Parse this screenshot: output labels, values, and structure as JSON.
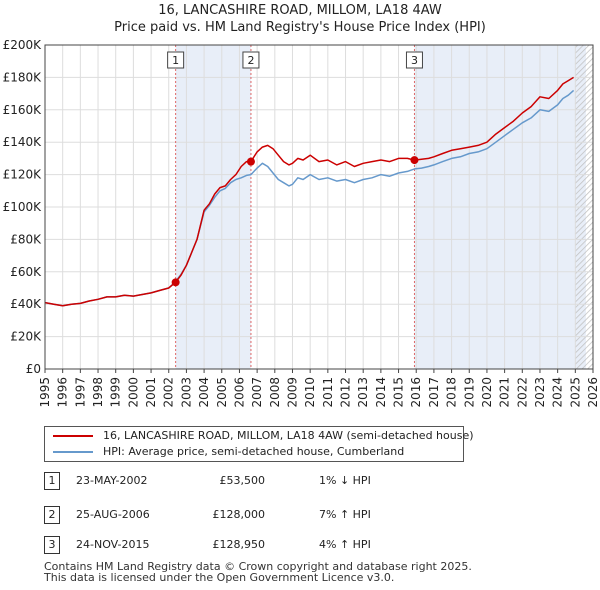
{
  "title_line1": "16, LANCASHIRE ROAD, MILLOM, LA18 4AW",
  "title_line2": "Price paid vs. HM Land Registry's House Price Index (HPI)",
  "colors": {
    "property": "#cc0000",
    "hpi": "#6699cc",
    "shade": "#e8eef8",
    "hatch": "#c0c0c0",
    "vline": "#dd6666"
  },
  "chart_data": {
    "type": "line",
    "xlim": [
      1995,
      2026
    ],
    "ylim": [
      0,
      200000
    ],
    "x_ticks": [
      "1995",
      "1996",
      "1997",
      "1998",
      "1999",
      "2000",
      "2001",
      "2002",
      "2003",
      "2004",
      "2005",
      "2006",
      "2007",
      "2008",
      "2009",
      "2010",
      "2011",
      "2012",
      "2013",
      "2014",
      "2015",
      "2016",
      "2017",
      "2018",
      "2019",
      "2020",
      "2021",
      "2022",
      "2023",
      "2024",
      "2025",
      "2026"
    ],
    "y_ticks": [
      "£0",
      "£20K",
      "£40K",
      "£60K",
      "£80K",
      "£100K",
      "£120K",
      "£140K",
      "£160K",
      "£180K",
      "£200K"
    ],
    "grid": true,
    "shaded_ranges": [
      [
        2002.39,
        2006.65
      ],
      [
        2015.9,
        2025.6
      ]
    ],
    "hatched_from": 2025.0,
    "series": [
      {
        "name": "property",
        "label": "16, LANCASHIRE ROAD, MILLOM, LA18 4AW (semi-detached house)",
        "x": [
          1995.0,
          1995.5,
          1996.0,
          1996.5,
          1997.0,
          1997.5,
          1998.0,
          1998.5,
          1999.0,
          1999.5,
          2000.0,
          2000.5,
          2001.0,
          2001.5,
          2002.0,
          2002.39,
          2002.7,
          2003.0,
          2003.3,
          2003.6,
          2004.0,
          2004.3,
          2004.6,
          2004.9,
          2005.2,
          2005.5,
          2005.8,
          2006.1,
          2006.4,
          2006.65,
          2007.0,
          2007.3,
          2007.6,
          2007.9,
          2008.2,
          2008.5,
          2008.8,
          2009.0,
          2009.3,
          2009.6,
          2010.0,
          2010.5,
          2011.0,
          2011.5,
          2012.0,
          2012.5,
          2013.0,
          2013.5,
          2014.0,
          2014.5,
          2015.0,
          2015.5,
          2015.9,
          2016.3,
          2016.7,
          2017.0,
          2017.5,
          2018.0,
          2018.5,
          2019.0,
          2019.5,
          2020.0,
          2020.5,
          2021.0,
          2021.5,
          2022.0,
          2022.5,
          2023.0,
          2023.5,
          2024.0,
          2024.3,
          2024.6,
          2024.9
        ],
        "y": [
          41000,
          40000,
          39000,
          40000,
          40500,
          42000,
          43000,
          44500,
          44500,
          45500,
          45000,
          46000,
          47000,
          48500,
          50000,
          53500,
          58000,
          64000,
          72000,
          80000,
          98000,
          102000,
          108000,
          112000,
          113000,
          117000,
          120000,
          125000,
          128000,
          128000,
          134000,
          137000,
          138000,
          136000,
          132000,
          128000,
          126000,
          127000,
          130000,
          129000,
          132000,
          128000,
          129000,
          126000,
          128000,
          125000,
          127000,
          128000,
          129000,
          128000,
          130000,
          130000,
          128950,
          129500,
          130000,
          131000,
          133000,
          135000,
          136000,
          137000,
          138000,
          140000,
          145000,
          149000,
          153000,
          158000,
          162000,
          168000,
          167000,
          172000,
          176000,
          178000,
          180000
        ]
      },
      {
        "name": "hpi",
        "label": "HPI: Average price, semi-detached house, Cumberland",
        "x": [
          1995.0,
          1995.5,
          1996.0,
          1996.5,
          1997.0,
          1997.5,
          1998.0,
          1998.5,
          1999.0,
          1999.5,
          2000.0,
          2000.5,
          2001.0,
          2001.5,
          2002.0,
          2002.39,
          2002.7,
          2003.0,
          2003.3,
          2003.6,
          2004.0,
          2004.3,
          2004.6,
          2004.9,
          2005.2,
          2005.5,
          2005.8,
          2006.1,
          2006.4,
          2006.65,
          2007.0,
          2007.3,
          2007.6,
          2007.9,
          2008.2,
          2008.5,
          2008.8,
          2009.0,
          2009.3,
          2009.6,
          2010.0,
          2010.5,
          2011.0,
          2011.5,
          2012.0,
          2012.5,
          2013.0,
          2013.5,
          2014.0,
          2014.5,
          2015.0,
          2015.5,
          2015.9,
          2016.3,
          2016.7,
          2017.0,
          2017.5,
          2018.0,
          2018.5,
          2019.0,
          2019.5,
          2020.0,
          2020.5,
          2021.0,
          2021.5,
          2022.0,
          2022.5,
          2023.0,
          2023.5,
          2024.0,
          2024.3,
          2024.6,
          2024.9
        ],
        "y": [
          41000,
          40000,
          39000,
          40000,
          40500,
          42000,
          43000,
          44500,
          44500,
          45500,
          45000,
          46000,
          47000,
          48500,
          50000,
          54000,
          58500,
          64000,
          72000,
          80000,
          97000,
          101000,
          106000,
          110000,
          111500,
          115000,
          117000,
          118000,
          119500,
          120000,
          124000,
          127000,
          125000,
          121000,
          117000,
          115000,
          113000,
          114000,
          118000,
          117000,
          120000,
          117000,
          118000,
          116000,
          117000,
          115000,
          117000,
          118000,
          120000,
          119000,
          121000,
          122000,
          123500,
          124000,
          125000,
          126000,
          128000,
          130000,
          131000,
          133000,
          134000,
          136000,
          140000,
          144000,
          148000,
          152000,
          155000,
          160000,
          159000,
          163000,
          167000,
          169000,
          172000
        ]
      }
    ],
    "sales": [
      {
        "n": "1",
        "x": 2002.39,
        "y": 53500
      },
      {
        "n": "2",
        "x": 2006.65,
        "y": 128000
      },
      {
        "n": "3",
        "x": 2015.9,
        "y": 128950
      }
    ]
  },
  "sales_table": [
    {
      "n": "1",
      "date": "23-MAY-2002",
      "price": "£53,500",
      "hpi": "1% ↓ HPI"
    },
    {
      "n": "2",
      "date": "25-AUG-2006",
      "price": "£128,000",
      "hpi": "7% ↑ HPI"
    },
    {
      "n": "3",
      "date": "24-NOV-2015",
      "price": "£128,950",
      "hpi": "4% ↑ HPI"
    }
  ],
  "footer_line1": "Contains HM Land Registry data © Crown copyright and database right 2025.",
  "footer_line2": "This data is licensed under the Open Government Licence v3.0."
}
